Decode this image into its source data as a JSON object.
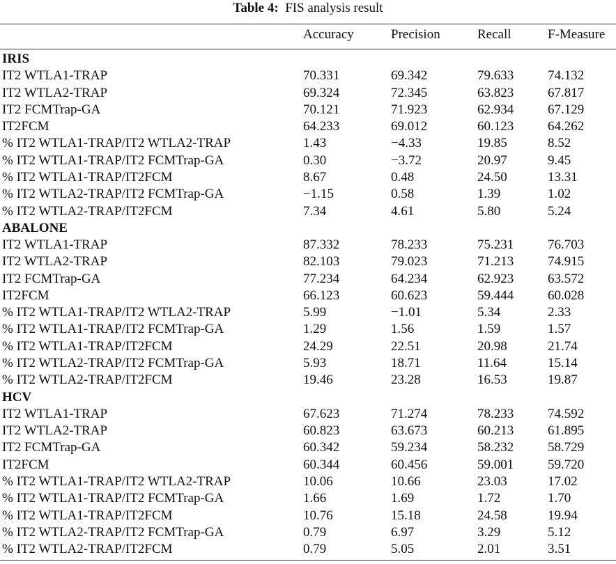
{
  "title": {
    "label": "Table 4:",
    "text": "FIS analysis result"
  },
  "table": {
    "columns": [
      "Accuracy",
      "Precision",
      "Recall",
      "F-Measure"
    ],
    "sections": [
      {
        "name": "IRIS",
        "rows": [
          [
            "IT2 WTLA1-TRAP",
            "70.331",
            "69.342",
            "79.633",
            "74.132"
          ],
          [
            "IT2 WTLA2-TRAP",
            "69.324",
            "72.345",
            "63.823",
            "67.817"
          ],
          [
            "IT2 FCMTrap-GA",
            "70.121",
            "71.923",
            "62.934",
            "67.129"
          ],
          [
            "IT2FCM",
            "64.233",
            "69.012",
            "60.123",
            "64.262"
          ],
          [
            "% IT2 WTLA1-TRAP/IT2 WTLA2-TRAP",
            "1.43",
            "−4.33",
            "19.85",
            "8.52"
          ],
          [
            "% IT2 WTLA1-TRAP/IT2 FCMTrap-GA",
            "0.30",
            "−3.72",
            "20.97",
            "9.45"
          ],
          [
            "% IT2 WTLA1-TRAP/IT2FCM",
            "8.67",
            "0.48",
            "24.50",
            "13.31"
          ],
          [
            "% IT2 WTLA2-TRAP/IT2 FCMTrap-GA",
            "−1.15",
            "0.58",
            "1.39",
            "1.02"
          ],
          [
            "% IT2 WTLA2-TRAP/IT2FCM",
            "7.34",
            "4.61",
            "5.80",
            "5.24"
          ]
        ]
      },
      {
        "name": "ABALONE",
        "rows": [
          [
            "IT2 WTLA1-TRAP",
            "87.332",
            "78.233",
            "75.231",
            "76.703"
          ],
          [
            "IT2 WTLA2-TRAP",
            "82.103",
            "79.023",
            "71.213",
            "74.915"
          ],
          [
            "IT2 FCMTrap-GA",
            "77.234",
            "64.234",
            "62.923",
            "63.572"
          ],
          [
            "IT2FCM",
            "66.123",
            "60.623",
            "59.444",
            "60.028"
          ],
          [
            "% IT2 WTLA1-TRAP/IT2 WTLA2-TRAP",
            "5.99",
            "−1.01",
            "5.34",
            "2.33"
          ],
          [
            "% IT2 WTLA1-TRAP/IT2 FCMTrap-GA",
            "1.29",
            "1.56",
            "1.59",
            "1.57"
          ],
          [
            "% IT2 WTLA1-TRAP/IT2FCM",
            "24.29",
            "22.51",
            "20.98",
            "21.74"
          ],
          [
            "% IT2 WTLA2-TRAP/IT2 FCMTrap-GA",
            "5.93",
            "18.71",
            "11.64",
            "15.14"
          ],
          [
            "% IT2 WTLA2-TRAP/IT2FCM",
            "19.46",
            "23.28",
            "16.53",
            "19.87"
          ]
        ]
      },
      {
        "name": "HCV",
        "rows": [
          [
            "IT2 WTLA1-TRAP",
            "67.623",
            "71.274",
            "78.233",
            "74.592"
          ],
          [
            "IT2 WTLA2-TRAP",
            "60.823",
            "63.673",
            "60.213",
            "61.895"
          ],
          [
            "IT2 FCMTrap-GA",
            "60.342",
            "59.234",
            "58.232",
            "58.729"
          ],
          [
            "IT2FCM",
            "60.344",
            "60.456",
            "59.001",
            "59.720"
          ],
          [
            "% IT2 WTLA1-TRAP/IT2 WTLA2-TRAP",
            "10.06",
            "10.66",
            "23.03",
            "17.02"
          ],
          [
            "% IT2 WTLA1-TRAP/IT2 FCMTrap-GA",
            "1.66",
            "1.69",
            "1.72",
            "1.70"
          ],
          [
            "% IT2 WTLA1-TRAP/IT2FCM",
            "10.76",
            "15.18",
            "24.58",
            "19.94"
          ],
          [
            "% IT2 WTLA2-TRAP/IT2 FCMTrap-GA",
            "0.79",
            "6.97",
            "3.29",
            "5.12"
          ],
          [
            "% IT2 WTLA2-TRAP/IT2FCM",
            "0.79",
            "5.05",
            "2.01",
            "3.51"
          ]
        ]
      }
    ]
  }
}
